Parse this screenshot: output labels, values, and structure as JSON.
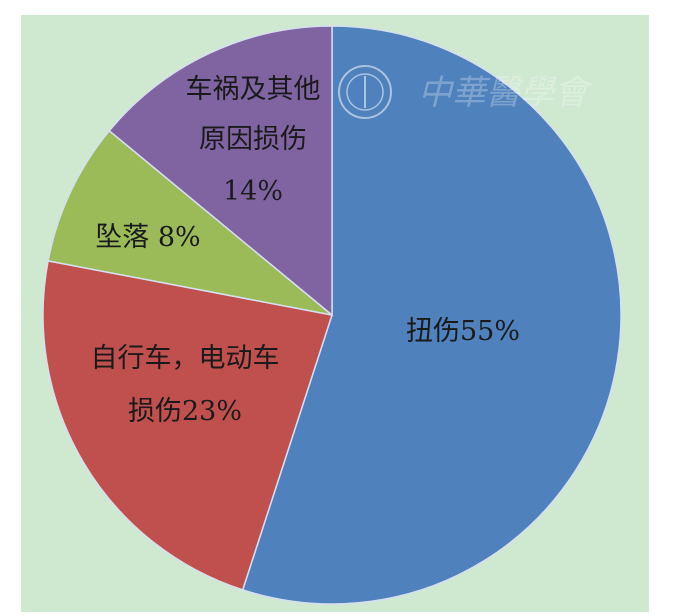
{
  "chart_data": {
    "type": "pie",
    "start": "top",
    "direction": "clockwise",
    "background_color": "#cfe8d0",
    "slices": [
      {
        "label_lines": [
          "扭伤55%"
        ],
        "category": "扭伤",
        "value": 55,
        "color": "#4f81bd"
      },
      {
        "label_lines": [
          "自行车，电动车",
          "损伤23%"
        ],
        "category": "自行车，电动车损伤",
        "value": 23,
        "color": "#c0504d"
      },
      {
        "label_lines": [
          "坠落 8%"
        ],
        "category": "坠落",
        "value": 8,
        "color": "#9bbb59"
      },
      {
        "label_lines": [
          "车祸及其他",
          "原因损伤",
          "14%"
        ],
        "category": "车祸及其他原因损伤",
        "value": 14,
        "color": "#8064a2"
      }
    ]
  },
  "watermark": {
    "text": "中華醫學會",
    "logo_text": "中华医学会",
    "icon": "chinese-medical-association-logo-icon"
  }
}
